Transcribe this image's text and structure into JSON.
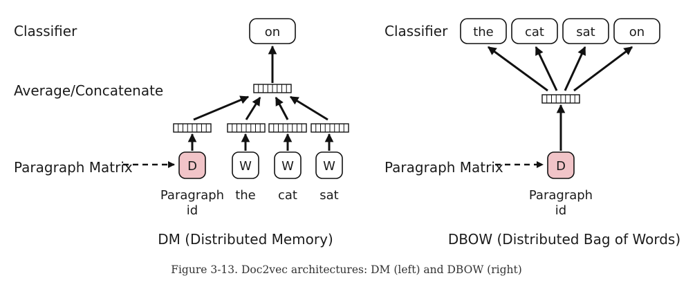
{
  "left": {
    "labels": {
      "classifier": "Classifier",
      "average": "Average/Concatenate",
      "paragraph_matrix": "Paragraph Matrix"
    },
    "output_word": "on",
    "input_nodes": [
      "D",
      "W",
      "W",
      "W"
    ],
    "input_labels": [
      "Paragraph",
      "the",
      "cat",
      "sat"
    ],
    "input_sublabel": "id",
    "subtitle": "DM (Distributed Memory)"
  },
  "right": {
    "labels": {
      "classifier": "Classifier",
      "paragraph_matrix": "Paragraph Matrix"
    },
    "output_words": [
      "the",
      "cat",
      "sat",
      "on"
    ],
    "input_node": "D",
    "input_label": "Paragraph",
    "input_sublabel": "id",
    "subtitle": "DBOW (Distributed Bag of Words)"
  },
  "caption": "Figure 3-13. Doc2vec architectures: DM (left) and DBOW (right)",
  "colors": {
    "doc_node_fill": "#f1c4c8",
    "stroke": "#111111",
    "caption_text": "#333333"
  }
}
